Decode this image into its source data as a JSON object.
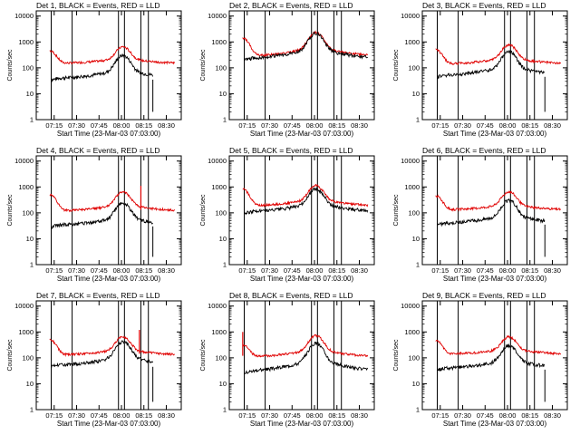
{
  "figure": {
    "xlabel": "Start Time (23-Mar-03 07:03:00)",
    "ylabel": "Counts/sec",
    "legend_text": "BLACK = Events, RED = LLD",
    "y_ticks": [
      "1",
      "10",
      "100",
      "1000",
      "10000"
    ],
    "x_ticks": [
      "07:15",
      "07:30",
      "07:45",
      "08:00",
      "08:15",
      "08:30"
    ],
    "colors": {
      "events": "#000000",
      "lld": "#e00000",
      "axes": "#000000"
    }
  },
  "chart_data": [
    {
      "type": "line",
      "title": "Det 1",
      "events_base": 35,
      "lld_base": 140,
      "peak_events": 250,
      "peak_lld": 550,
      "early_lld": 450,
      "spike": null,
      "cut_at": "08:20"
    },
    {
      "type": "line",
      "title": "Det 2",
      "events_base": 200,
      "lld_base": 250,
      "peak_events": 1800,
      "peak_lld": 1900,
      "early_lld": 1400,
      "spike": null,
      "cut_at": null
    },
    {
      "type": "line",
      "title": "Det 3",
      "events_base": 45,
      "lld_base": 130,
      "peak_events": 350,
      "peak_lld": 650,
      "early_lld": 500,
      "spike": null,
      "cut_at": "08:24"
    },
    {
      "type": "line",
      "title": "Det 4",
      "events_base": 30,
      "lld_base": 110,
      "peak_events": 200,
      "peak_lld": 550,
      "early_lld": 500,
      "spike": "08:13",
      "cut_at": "08:20"
    },
    {
      "type": "line",
      "title": "Det 5",
      "events_base": 100,
      "lld_base": 170,
      "peak_events": 700,
      "peak_lld": 950,
      "early_lld": 800,
      "spike": null,
      "cut_at": null
    },
    {
      "type": "line",
      "title": "Det 6",
      "events_base": 35,
      "lld_base": 120,
      "peak_events": 250,
      "peak_lld": 550,
      "early_lld": 450,
      "spike": null,
      "cut_at": "08:24"
    },
    {
      "type": "line",
      "title": "Det 7",
      "events_base": 45,
      "lld_base": 120,
      "peak_events": 350,
      "peak_lld": 550,
      "early_lld": 500,
      "spike": "08:12",
      "cut_at": "08:20"
    },
    {
      "type": "line",
      "title": "Det 8",
      "events_base": 25,
      "lld_base": 100,
      "peak_events": 300,
      "peak_lld": 600,
      "early_lld": 300,
      "spike": "07:12",
      "cut_at": null
    },
    {
      "type": "line",
      "title": "Det 9",
      "events_base": 35,
      "lld_base": 130,
      "peak_events": 250,
      "peak_lld": 550,
      "early_lld": 450,
      "spike": null,
      "cut_at": "08:24"
    }
  ]
}
